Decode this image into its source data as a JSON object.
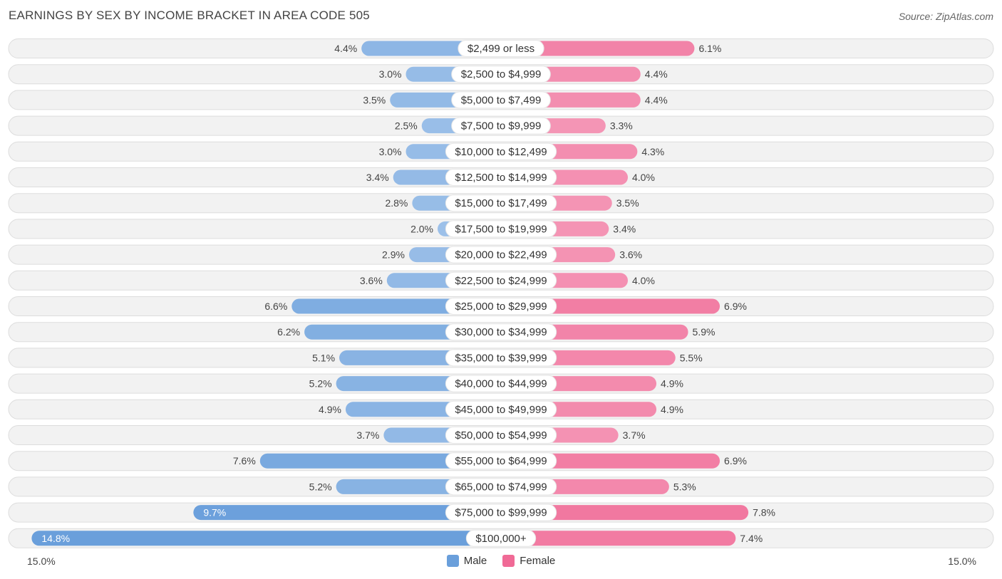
{
  "chart_data": {
    "type": "bar",
    "orientation": "horizontal-diverging",
    "title": "EARNINGS BY SEX BY INCOME BRACKET IN AREA CODE 505",
    "source": "Source: ZipAtlas.com",
    "categories": [
      "$2,499 or less",
      "$2,500 to $4,999",
      "$5,000 to $7,499",
      "$7,500 to $9,999",
      "$10,000 to $12,499",
      "$12,500 to $14,999",
      "$15,000 to $17,499",
      "$17,500 to $19,999",
      "$20,000 to $22,499",
      "$22,500 to $24,999",
      "$25,000 to $29,999",
      "$30,000 to $34,999",
      "$35,000 to $39,999",
      "$40,000 to $44,999",
      "$45,000 to $49,999",
      "$50,000 to $54,999",
      "$55,000 to $64,999",
      "$65,000 to $74,999",
      "$75,000 to $99,999",
      "$100,000+"
    ],
    "series": [
      {
        "name": "Male",
        "values": [
          4.4,
          3.0,
          3.5,
          2.5,
          3.0,
          3.4,
          2.8,
          2.0,
          2.9,
          3.6,
          6.6,
          6.2,
          5.1,
          5.2,
          4.9,
          3.7,
          7.6,
          5.2,
          9.7,
          14.8
        ]
      },
      {
        "name": "Female",
        "values": [
          6.1,
          4.4,
          4.4,
          3.3,
          4.3,
          4.0,
          3.5,
          3.4,
          3.6,
          4.0,
          6.9,
          5.9,
          5.5,
          4.9,
          4.9,
          3.7,
          6.9,
          5.3,
          7.8,
          7.4
        ]
      }
    ],
    "value_labels": {
      "Male": [
        "4.4%",
        "3.0%",
        "3.5%",
        "2.5%",
        "3.0%",
        "3.4%",
        "2.8%",
        "2.0%",
        "2.9%",
        "3.6%",
        "6.6%",
        "6.2%",
        "5.1%",
        "5.2%",
        "4.9%",
        "3.7%",
        "7.6%",
        "5.2%",
        "9.7%",
        "14.8%"
      ],
      "Female": [
        "6.1%",
        "4.4%",
        "4.4%",
        "3.3%",
        "4.3%",
        "4.0%",
        "3.5%",
        "3.4%",
        "3.6%",
        "4.0%",
        "6.9%",
        "5.9%",
        "5.5%",
        "4.9%",
        "4.9%",
        "3.7%",
        "6.9%",
        "5.3%",
        "7.8%",
        "7.4%"
      ]
    },
    "xlim": [
      -15.0,
      15.0
    ],
    "axis_min_label": "15.0%",
    "axis_max_label": "15.0%",
    "legend": [
      "Male",
      "Female"
    ],
    "legend_position": "bottom-center",
    "colors": {
      "male_light": "#a9c8ec",
      "male_dark": "#6a9fdb",
      "female_light": "#f6aac4",
      "female_dark": "#f06a96",
      "row_bg": "#f2f2f2",
      "row_border": "#dddddd"
    }
  }
}
